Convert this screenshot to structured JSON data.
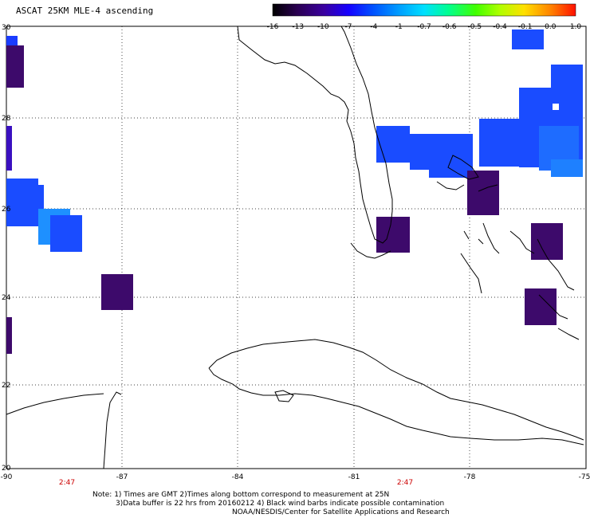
{
  "title": "ASCAT 25KM MLE-4 ascending",
  "colorbar": {
    "labels": [
      "-16",
      "-13",
      "-10",
      "-7",
      "-4",
      "-1",
      "-0.7",
      "-0.6",
      "-0.5",
      "-0.4",
      "-0.1",
      "0.0",
      "1.0"
    ]
  },
  "axes": {
    "lon_labels": [
      "-90",
      "-87",
      "-84",
      "-81",
      "-78",
      "-75"
    ],
    "lat_labels": [
      "30",
      "28",
      "26",
      "24",
      "22",
      "20"
    ]
  },
  "times": [
    "2:47",
    "2:47"
  ],
  "notes": {
    "line1": "Note: 1) Times are GMT 2)Times along bottom correspond to measurement at 25N",
    "line2": "3)Data buffer is 22 hrs from 20160212 4) Black wind barbs indicate possible contamination",
    "line3": "NOAA/NESDIS/Center for Satellite Applications and Research"
  },
  "colors": {
    "dark_purple": "#3d0a6b",
    "blue": "#1a4cff",
    "light_blue": "#1e90ff"
  }
}
